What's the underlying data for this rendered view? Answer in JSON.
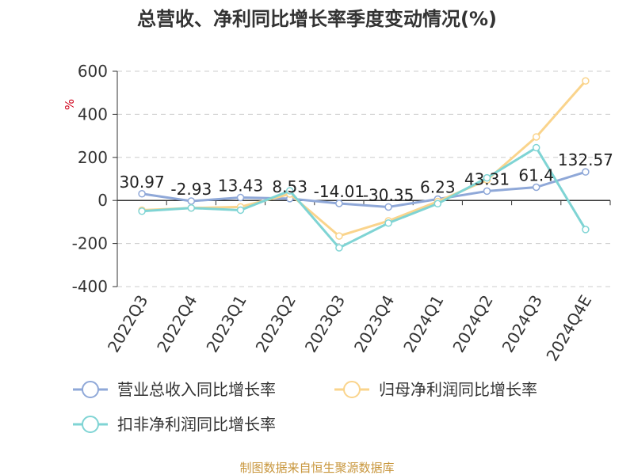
{
  "title": "总营收、净利同比增长率季度变动情况(%)",
  "source": "制图数据来自恒生聚源数据库",
  "chart_data": {
    "type": "line",
    "unit_label": "%",
    "categories": [
      "2022Q3",
      "2022Q4",
      "2023Q1",
      "2023Q2",
      "2023Q3",
      "2023Q4",
      "2024Q1",
      "2024Q2",
      "2024Q3",
      "2024Q4E"
    ],
    "ylim": [
      -400,
      600
    ],
    "yticks": [
      600,
      400,
      200,
      0,
      -200,
      -400
    ],
    "ytick_labels": [
      "600",
      "400",
      "200",
      "0",
      "-200",
      "-400"
    ],
    "grid": true,
    "legend_position": "bottom",
    "series": [
      {
        "name": "营业总收入同比增长率",
        "color": "#8fa8d8",
        "values": [
          30.97,
          -2.93,
          13.43,
          8.53,
          -14.01,
          -30.35,
          6.23,
          43.31,
          61.4,
          132.57
        ],
        "labels": [
          "30.97",
          "-2.93",
          "13.43",
          "8.53",
          "-14.01",
          "-30.35",
          "6.23",
          "43.31",
          "61.4",
          "132.57"
        ]
      },
      {
        "name": "归母净利润同比增长率",
        "color": "#fad48c",
        "values": [
          -45,
          -35,
          -30,
          30,
          -165,
          -95,
          -5,
          95,
          295,
          555
        ]
      },
      {
        "name": "扣非净利润同比增长率",
        "color": "#7fd4d4",
        "values": [
          -50,
          -35,
          -45,
          45,
          -220,
          -105,
          -15,
          105,
          245,
          -135
        ]
      }
    ]
  }
}
